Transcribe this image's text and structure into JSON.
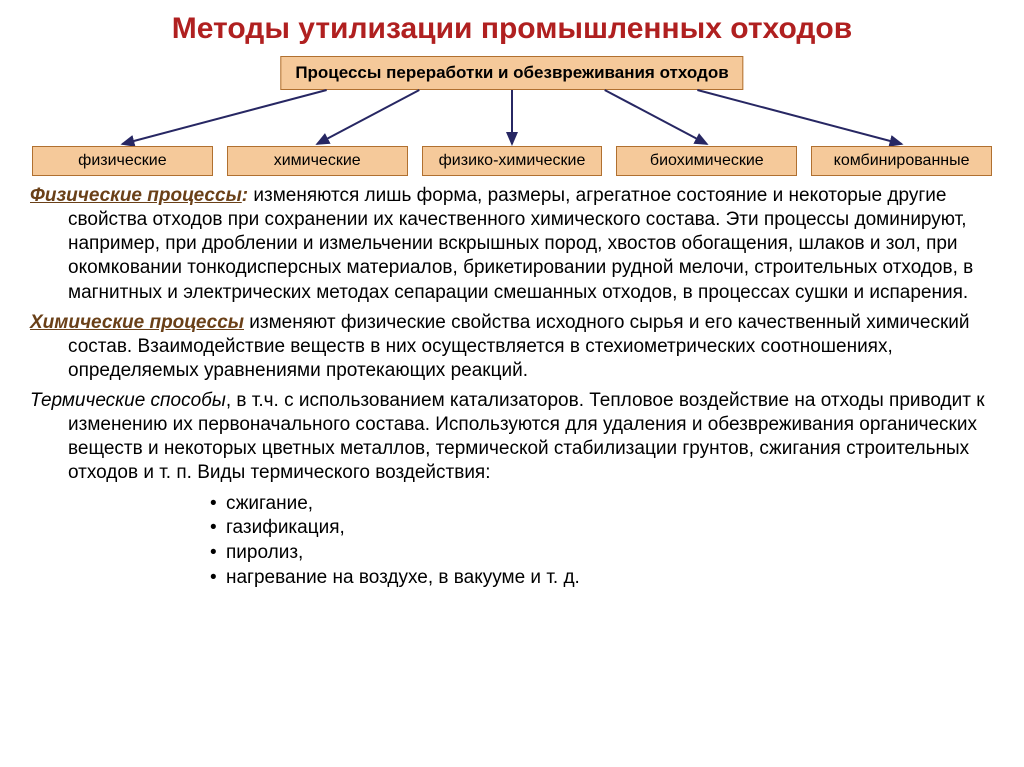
{
  "colors": {
    "title": "#b02020",
    "box_bg": "#f5c99a",
    "box_border": "#b07030",
    "term": "#6a4018",
    "text": "#000000",
    "arrow": "#272763"
  },
  "title": "Методы утилизации промышленных отходов",
  "diagram": {
    "root": "Процессы переработки и обезвреживания отходов",
    "children": [
      "физические",
      "химические",
      "физико-химические",
      "биохимические",
      "комбинированные"
    ]
  },
  "sections": [
    {
      "term": "Физические процессы",
      "term_style": "bold-italic-underline",
      "sep": ": ",
      "body": "изменяются лишь форма, размеры,  агрегатное состояние и некоторые другие свойства отходов при сохранении их качественного химического состава. Эти процессы доминируют, например, при дроблении и измельчении вскрышных пород, хвостов обогащения,  шлаков  и  зол,   при окомковании тонкодисперсных материалов,   брикетировании рудной мелочи, строительных отходов, в магнитных и электрических методах сепарации   смешанных отходов, в процессах сушки и испарения."
    },
    {
      "term": "Химические  процессы",
      "term_style": "bold-italic-underline",
      "sep": " ",
      "body": "изменяют  физические  свойства  исходного  сырья  и его качественный химический состав. Взаимодействие веществ в них осуществляется в стехиометрических соотношениях, определяемых уравнениями протекающих реакций."
    },
    {
      "term": "Термические способы",
      "term_style": "italic",
      "sep": ", ",
      "body": "в т.ч. с использованием катализаторов. Тепловое воздействие на отходы приводит к изменению их первоначального состава. Используются для удаления и обезвреживания органических веществ и некоторых цветных металлов, термической стабилизации грунтов, сжигания строительных отходов и т. п. Виды термического воздействия:",
      "bullets": [
        "сжигание,",
        "газификация,",
        "пиролиз,",
        "нагревание на воздухе, в вакууме и т. д."
      ]
    }
  ]
}
